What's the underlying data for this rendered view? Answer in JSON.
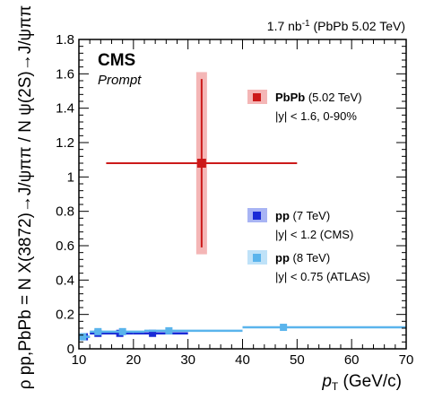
{
  "chart_data": {
    "type": "scatter",
    "lumi_prefix": "1.7 nb",
    "lumi_sup": "-1",
    "lumi_suffix": " (PbPb 5.02 TeV)",
    "experiment": "CMS",
    "subtitle": "Prompt",
    "xlabel_main": "p",
    "xlabel_sub": "T",
    "xlabel_unit": " (GeV/c)",
    "ylabel": "ρ pp,PbPb = N X(3872)→J/ψππ / N ψ(2S)→J/ψππ",
    "xlim": [
      10,
      70
    ],
    "ylim": [
      0,
      1.8
    ],
    "xticks": [
      10,
      20,
      30,
      40,
      50,
      60,
      70
    ],
    "yticks": [
      0,
      0.2,
      0.4,
      0.6,
      0.8,
      1,
      1.2,
      1.4,
      1.6,
      1.8
    ],
    "xtick_labels": [
      "10",
      "20",
      "30",
      "40",
      "50",
      "60",
      "70"
    ],
    "ytick_labels": [
      "0",
      "0.2",
      "0.4",
      "0.6",
      "0.8",
      "1",
      "1.2",
      "1.4",
      "1.6",
      "1.8"
    ],
    "series": [
      {
        "name": "PbPb",
        "energy": "(5.02 TeV)",
        "selection": "|y| < 1.6, 0-90%",
        "color": "#cc1a1a",
        "syst_color": "#f4b6b6",
        "points": [
          {
            "x": 32.5,
            "xlo": 15,
            "xhi": 50,
            "y": 1.08,
            "stat": 0.49,
            "syst": 0.53
          }
        ]
      },
      {
        "name": "pp",
        "energy": "(7 TeV)",
        "selection": "|y| < 1.2 (CMS)",
        "color": "#1a2bd6",
        "syst_color": "#a8b4f4",
        "points": [
          {
            "x": 11,
            "xlo": 10,
            "xhi": 12,
            "y": 0.07,
            "stat": 0.015,
            "syst": 0.012
          },
          {
            "x": 13.5,
            "xlo": 12,
            "xhi": 16,
            "y": 0.09,
            "stat": 0.012,
            "syst": 0.01
          },
          {
            "x": 17.5,
            "xlo": 16,
            "xhi": 20,
            "y": 0.09,
            "stat": 0.012,
            "syst": 0.01
          },
          {
            "x": 23.5,
            "xlo": 20,
            "xhi": 30,
            "y": 0.09,
            "stat": 0.015,
            "syst": 0.012
          }
        ]
      },
      {
        "name": "pp",
        "energy": "(8 TeV)",
        "selection": "|y| < 0.75 (ATLAS)",
        "color": "#5ab4ec",
        "syst_color": "#bfe2f8",
        "points": [
          {
            "x": 10.7,
            "xlo": 10,
            "xhi": 12,
            "y": 0.07,
            "stat": 0.012,
            "syst": 0.01
          },
          {
            "x": 13.5,
            "xlo": 12,
            "xhi": 16,
            "y": 0.1,
            "stat": 0.008,
            "syst": 0.006
          },
          {
            "x": 18,
            "xlo": 16,
            "xhi": 22,
            "y": 0.1,
            "stat": 0.008,
            "syst": 0.006
          },
          {
            "x": 26.5,
            "xlo": 22,
            "xhi": 40,
            "y": 0.105,
            "stat": 0.008,
            "syst": 0.006
          },
          {
            "x": 47.5,
            "xlo": 40,
            "xhi": 70,
            "y": 0.125,
            "stat": 0.01,
            "syst": 0.008
          }
        ]
      }
    ]
  }
}
